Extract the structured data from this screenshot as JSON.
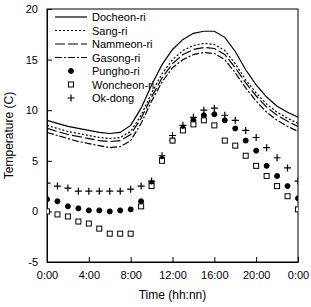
{
  "chart_data": {
    "type": "line",
    "x_label": "Time (hh:nn)",
    "y_label": "Temperature (C)",
    "x": [
      0,
      1,
      2,
      3,
      4,
      5,
      6,
      7,
      8,
      9,
      10,
      11,
      12,
      13,
      14,
      15,
      16,
      17,
      18,
      19,
      20,
      21,
      22,
      23,
      24
    ],
    "xlim": [
      0,
      24
    ],
    "xticks": [
      {
        "value": 0,
        "label": "0:00"
      },
      {
        "value": 4,
        "label": "4:00"
      },
      {
        "value": 8,
        "label": "8:00"
      },
      {
        "value": 12,
        "label": "12:00"
      },
      {
        "value": 16,
        "label": "16:00"
      },
      {
        "value": 20,
        "label": "20:00"
      },
      {
        "value": 24,
        "label": "0:00"
      }
    ],
    "ylim": [
      -5,
      20
    ],
    "yticks": [
      -5,
      0,
      5,
      10,
      15,
      20
    ],
    "legend": "top-left",
    "series": [
      {
        "name": "Docheon-ri",
        "type": "line",
        "line_style": "solid",
        "color": "#000000",
        "values": [
          9.0,
          8.7,
          8.4,
          8.2,
          8.0,
          7.8,
          7.7,
          7.8,
          8.5,
          10.2,
          12.5,
          14.5,
          16.0,
          17.0,
          17.6,
          17.8,
          17.8,
          17.2,
          15.8,
          14.0,
          12.5,
          11.3,
          10.4,
          9.8,
          9.3
        ]
      },
      {
        "name": "Sang-ri",
        "type": "line",
        "line_style": "dotted",
        "color": "#000000",
        "values": [
          8.5,
          8.2,
          7.9,
          7.7,
          7.5,
          7.3,
          7.2,
          7.3,
          7.9,
          9.5,
          11.7,
          13.6,
          15.0,
          15.9,
          16.4,
          16.6,
          16.5,
          15.9,
          14.6,
          13.0,
          11.7,
          10.6,
          9.8,
          9.2,
          8.7
        ]
      },
      {
        "name": "Nammeon-ri",
        "type": "line",
        "line_style": "dashed",
        "color": "#000000",
        "values": [
          8.2,
          7.9,
          7.6,
          7.4,
          7.2,
          7.0,
          6.9,
          7.0,
          7.6,
          9.2,
          11.3,
          13.2,
          14.6,
          15.5,
          16.0,
          16.2,
          16.1,
          15.5,
          14.2,
          12.7,
          11.4,
          10.3,
          9.5,
          8.9,
          8.4
        ]
      },
      {
        "name": "Gasong-ri",
        "type": "line",
        "line_style": "dashdot",
        "color": "#000000",
        "values": [
          7.8,
          7.5,
          7.2,
          6.9,
          6.7,
          6.5,
          6.3,
          6.4,
          7.0,
          8.7,
          10.9,
          12.8,
          14.2,
          15.0,
          15.5,
          15.7,
          15.6,
          15.0,
          13.7,
          12.2,
          10.9,
          9.8,
          9.0,
          8.4,
          7.9
        ]
      },
      {
        "name": "Pungho-ri",
        "type": "scatter",
        "marker": "circle",
        "color": "#000000",
        "values": [
          1.2,
          1.0,
          0.5,
          0.3,
          0.1,
          0.1,
          0.0,
          0.1,
          0.2,
          1.0,
          2.8,
          5.2,
          7.0,
          8.2,
          9.0,
          9.5,
          9.6,
          9.0,
          8.2,
          7.0,
          6.0,
          4.5,
          3.5,
          2.5,
          1.3
        ]
      },
      {
        "name": "Woncheon-ri",
        "type": "scatter",
        "marker": "open-square",
        "color": "#000000",
        "values": [
          0.0,
          -0.3,
          -0.5,
          -1.0,
          -1.2,
          -1.7,
          -2.2,
          -2.2,
          -2.2,
          0.5,
          2.5,
          5.0,
          7.0,
          8.0,
          8.6,
          9.0,
          8.5,
          7.0,
          6.5,
          5.5,
          4.5,
          3.5,
          2.5,
          1.5,
          0.2
        ]
      },
      {
        "name": "Ok-dong",
        "type": "scatter",
        "marker": "plus",
        "color": "#000000",
        "values": [
          2.8,
          2.5,
          2.3,
          2.0,
          2.0,
          2.0,
          2.0,
          2.0,
          2.2,
          2.5,
          3.0,
          5.5,
          7.5,
          8.5,
          9.3,
          10.0,
          10.2,
          9.5,
          9.0,
          8.0,
          7.3,
          6.3,
          5.3,
          4.3,
          3.0
        ]
      }
    ]
  }
}
